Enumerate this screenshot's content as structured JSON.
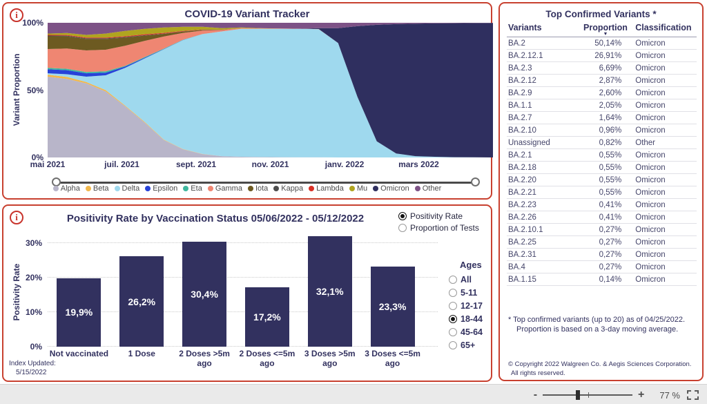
{
  "variant_tracker": {
    "title": "COVID-19 Variant Tracker",
    "y_axis_label": "Variant Proportion",
    "y_ticks": [
      "100%",
      "50%",
      "0%"
    ],
    "x_ticks": [
      "mai 2021",
      "juil. 2021",
      "sept. 2021",
      "nov. 2021",
      "janv. 2022",
      "mars 2022"
    ]
  },
  "positivity": {
    "title": "Positivity Rate by Vaccination Status 05/06/2022 - 05/12/2022",
    "measure_options": [
      {
        "label": "Positivity Rate",
        "selected": true
      },
      {
        "label": "Proportion of Tests",
        "selected": false
      }
    ],
    "y_axis_label": "Positivity Rate",
    "y_ticks": [
      "30%",
      "20%",
      "10%",
      "0%"
    ],
    "ages": {
      "title": "Ages",
      "options": [
        "All",
        "5-11",
        "12-17",
        "18-44",
        "45-64",
        "65+"
      ],
      "selected": "18-44"
    },
    "index_updated": {
      "line1": "Index Updated:",
      "line2": "5/15/2022"
    }
  },
  "variants_table": {
    "title": "Top Confirmed Variants *",
    "columns": [
      "Variants",
      "Proportion",
      "Classification"
    ],
    "sort_caret": "▼",
    "rows": [
      [
        "BA.2",
        "50,14%",
        "Omicron"
      ],
      [
        "BA.2.12.1",
        "26,91%",
        "Omicron"
      ],
      [
        "BA.2.3",
        "6,69%",
        "Omicron"
      ],
      [
        "BA.2.12",
        "2,87%",
        "Omicron"
      ],
      [
        "BA.2.9",
        "2,60%",
        "Omicron"
      ],
      [
        "BA.1.1",
        "2,05%",
        "Omicron"
      ],
      [
        "BA.2.7",
        "1,64%",
        "Omicron"
      ],
      [
        "BA.2.10",
        "0,96%",
        "Omicron"
      ],
      [
        "Unassigned",
        "0,82%",
        "Other"
      ],
      [
        "BA.2.1",
        "0,55%",
        "Omicron"
      ],
      [
        "BA.2.18",
        "0,55%",
        "Omicron"
      ],
      [
        "BA.2.20",
        "0,55%",
        "Omicron"
      ],
      [
        "BA.2.21",
        "0,55%",
        "Omicron"
      ],
      [
        "BA.2.23",
        "0,41%",
        "Omicron"
      ],
      [
        "BA.2.26",
        "0,41%",
        "Omicron"
      ],
      [
        "BA.2.10.1",
        "0,27%",
        "Omicron"
      ],
      [
        "BA.2.25",
        "0,27%",
        "Omicron"
      ],
      [
        "BA.2.31",
        "0,27%",
        "Omicron"
      ],
      [
        "BA.4",
        "0,27%",
        "Omicron"
      ],
      [
        "BA.1.15",
        "0,14%",
        "Omicron"
      ]
    ],
    "footnote": {
      "line1": "* Top confirmed variants (up to 20) as of 04/25/2022.",
      "line2": "Proportion is based on a 3-day moving average."
    },
    "copyright": "© Copyright 2022 Walgreen Co. & Aegis Sciences Corporation. All rights reserved."
  },
  "zoom_control": {
    "minus": "-",
    "plus": "+",
    "value": "77 %"
  },
  "chart_data": [
    {
      "type": "area",
      "stacked": true,
      "normalized": "percent",
      "title": "COVID-19 Variant Tracker",
      "ylabel": "Variant Proportion",
      "ylim": [
        0,
        100
      ],
      "legend_position": "bottom",
      "x": [
        "2021-05-01",
        "2021-05-15",
        "2021-06-01",
        "2021-06-15",
        "2021-07-01",
        "2021-07-15",
        "2021-08-01",
        "2021-08-15",
        "2021-09-01",
        "2021-09-15",
        "2021-10-01",
        "2021-10-15",
        "2021-11-01",
        "2021-11-15",
        "2021-12-01",
        "2021-12-15",
        "2022-01-01",
        "2022-01-15",
        "2022-02-01",
        "2022-02-15",
        "2022-03-01",
        "2022-03-15",
        "2022-04-01",
        "2022-04-15"
      ],
      "series": [
        {
          "name": "Alpha",
          "color": "#b8b5c9",
          "values": [
            60,
            58,
            55,
            49,
            38,
            26,
            13,
            6,
            2.5,
            1,
            0.5,
            0.3,
            0.2,
            0.1,
            0.1,
            0,
            0,
            0,
            0,
            0,
            0,
            0,
            0,
            0
          ]
        },
        {
          "name": "Beta",
          "color": "#f2b84c",
          "values": [
            1.5,
            1.5,
            1,
            1,
            0.5,
            0.5,
            0.3,
            0.2,
            0.1,
            0,
            0,
            0,
            0,
            0,
            0,
            0,
            0,
            0,
            0,
            0,
            0,
            0,
            0,
            0
          ]
        },
        {
          "name": "Delta",
          "color": "#9fd9ee",
          "values": [
            1,
            2,
            4,
            11,
            28,
            47,
            67,
            81,
            89,
            93.5,
            95,
            95.2,
            95.3,
            95.4,
            95.2,
            85,
            45,
            12,
            3,
            1,
            0.5,
            0.2,
            0.1,
            0
          ]
        },
        {
          "name": "Epsilon",
          "color": "#2742d8",
          "values": [
            3,
            3,
            2.5,
            2,
            1,
            0.5,
            0.2,
            0.1,
            0,
            0,
            0,
            0,
            0,
            0,
            0,
            0,
            0,
            0,
            0,
            0,
            0,
            0,
            0,
            0
          ]
        },
        {
          "name": "Eta",
          "color": "#3eb79e",
          "values": [
            1,
            1,
            1,
            1,
            0.5,
            0.5,
            0.3,
            0.2,
            0.1,
            0,
            0,
            0,
            0,
            0,
            0,
            0,
            0,
            0,
            0,
            0,
            0,
            0,
            0,
            0
          ]
        },
        {
          "name": "Gamma",
          "color": "#ef8672",
          "values": [
            14,
            15,
            16,
            16,
            15,
            12,
            9,
            5,
            2.5,
            1,
            0.5,
            0.3,
            0.2,
            0.1,
            0.1,
            0,
            0,
            0,
            0,
            0,
            0,
            0,
            0,
            0
          ]
        },
        {
          "name": "Iota",
          "color": "#6d5a21",
          "values": [
            9.5,
            9,
            8.5,
            8,
            6,
            4,
            2,
            1,
            0.5,
            0.2,
            0,
            0,
            0,
            0,
            0,
            0,
            0,
            0,
            0,
            0,
            0,
            0,
            0,
            0
          ]
        },
        {
          "name": "Kappa",
          "color": "#4d4d4d",
          "values": [
            0.5,
            0.5,
            0.5,
            0.5,
            0.5,
            0.3,
            0.2,
            0.1,
            0,
            0,
            0,
            0,
            0,
            0,
            0,
            0,
            0,
            0,
            0,
            0,
            0,
            0,
            0,
            0
          ]
        },
        {
          "name": "Lambda",
          "color": "#d93025",
          "values": [
            0.5,
            0.5,
            0.5,
            0.5,
            0.5,
            0.7,
            0.5,
            0.4,
            0.3,
            0.1,
            0,
            0,
            0,
            0,
            0,
            0,
            0,
            0,
            0,
            0,
            0,
            0,
            0,
            0
          ]
        },
        {
          "name": "Mu",
          "color": "#b0a41f",
          "values": [
            1,
            1.5,
            2,
            3,
            4,
            4,
            4,
            3,
            2,
            1.2,
            0.5,
            0.2,
            0.1,
            0,
            0,
            0,
            0,
            0,
            0,
            0,
            0,
            0,
            0,
            0
          ]
        },
        {
          "name": "Omicron",
          "color": "#2f2f5f",
          "values": [
            0,
            0,
            0,
            0,
            0,
            0,
            0,
            0,
            0,
            0,
            0,
            0,
            0,
            0,
            0.6,
            11,
            52.5,
            86.5,
            96,
            98.4,
            99.1,
            99.5,
            99.7,
            99.9
          ]
        },
        {
          "name": "Other",
          "color": "#7d5286",
          "values": [
            8,
            7.5,
            9,
            8,
            6,
            4.5,
            3.5,
            3,
            3,
            4,
            3.5,
            4,
            4.2,
            4.4,
            4,
            4,
            2.5,
            1.5,
            1,
            0.6,
            0.4,
            0.3,
            0.2,
            0.1
          ]
        }
      ]
    },
    {
      "type": "bar",
      "title": "Positivity Rate by Vaccination Status 05/06/2022 - 05/12/2022",
      "categories": [
        "Not vaccinated",
        "1 Dose",
        "2 Doses >5m ago",
        "2 Doses <=5m ago",
        "3 Doses >5m ago",
        "3 Doses <=5m ago"
      ],
      "values": [
        19.9,
        26.2,
        30.4,
        17.2,
        32.1,
        23.3
      ],
      "labels": [
        "19,9%",
        "26,2%",
        "30,4%",
        "17,2%",
        "32,1%",
        "23,3%"
      ],
      "bar_color": "#32315f",
      "xlabel": "",
      "ylabel": "Positivity Rate",
      "ylim": [
        0,
        32.8
      ],
      "gridlines": [
        0,
        10,
        20,
        30
      ]
    }
  ]
}
